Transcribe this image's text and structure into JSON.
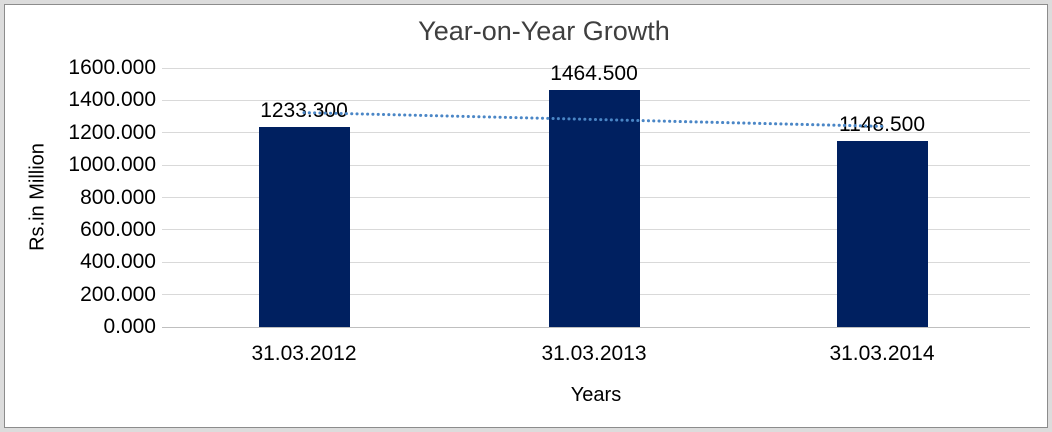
{
  "chart_data": {
    "type": "bar",
    "title": "Year-on-Year Growth",
    "xlabel": "Years",
    "ylabel": "Rs.in Million",
    "categories": [
      "31.03.2012",
      "31.03.2013",
      "31.03.2014"
    ],
    "values": [
      1233.3,
      1464.5,
      1148.5
    ],
    "data_labels": [
      "1233.300",
      "1464.500",
      "1148.500"
    ],
    "ylim": [
      0,
      1600
    ],
    "ytick_step": 200,
    "yticks": [
      0,
      200,
      400,
      600,
      800,
      1000,
      1200,
      1400,
      1600
    ],
    "ytick_labels": [
      "0.000",
      "200.000",
      "400.000",
      "600.000",
      "800.000",
      "1000.000",
      "1200.000",
      "1400.000",
      "1600.000"
    ],
    "grid": true,
    "legend": false,
    "trendline": {
      "style": "dotted",
      "start_value": 1324.5,
      "end_value": 1239.7,
      "color": "#4a86c6"
    },
    "colors": {
      "bar": "#002060",
      "gridline": "#d9d9d9",
      "axis_line": "#bfbfbf",
      "title_text": "#3f3f3f",
      "tick_text": "#000000",
      "frame_border": "#8c8c8c",
      "frame_outer": "#dcdcdc"
    }
  }
}
